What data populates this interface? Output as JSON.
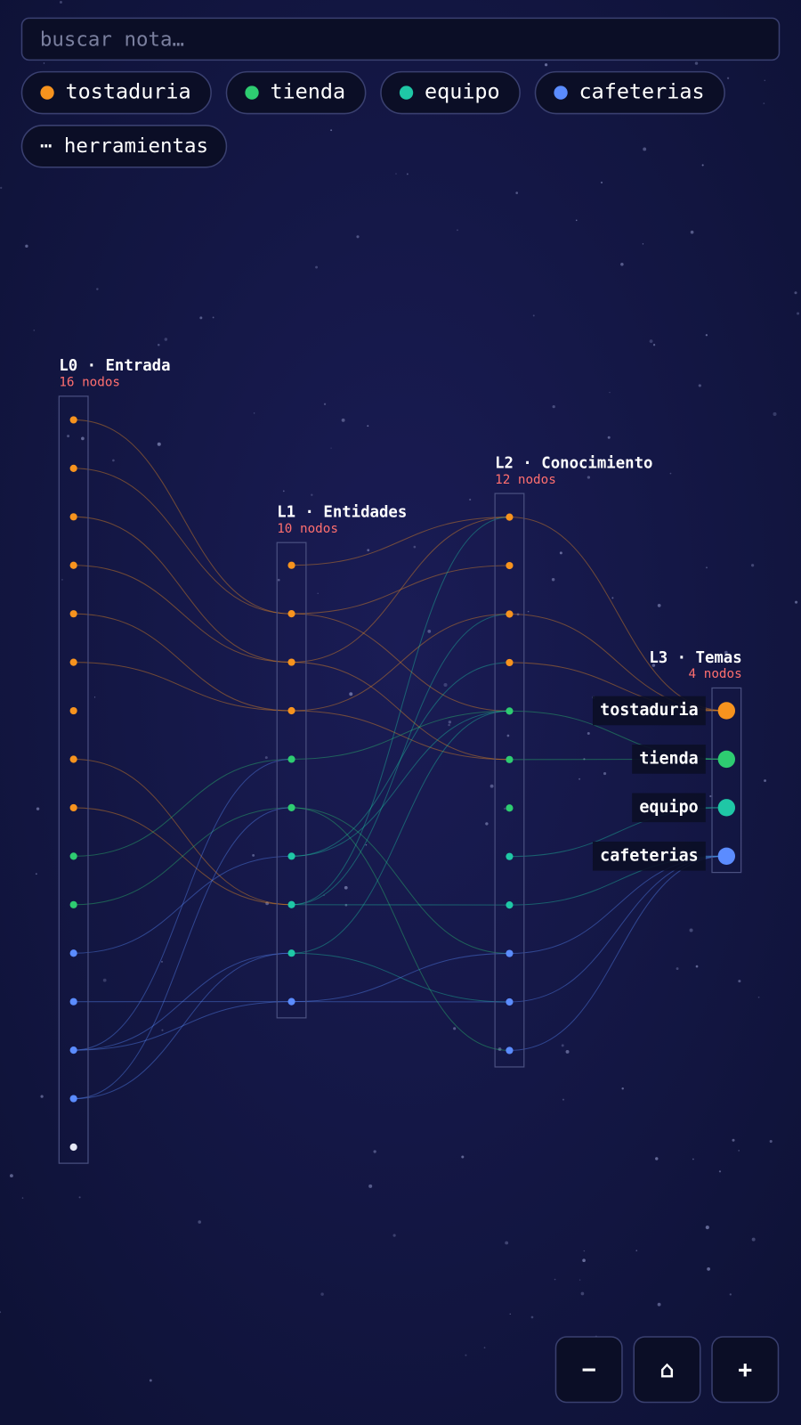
{
  "search": {
    "placeholder": "buscar nota…"
  },
  "filters": [
    "tostaduria",
    "tienda",
    "equipo",
    "cafeterias"
  ],
  "tools": "⋯ herramientas",
  "layers": [
    {
      "title": "L0 · Entrada",
      "count": "16 nodos"
    },
    {
      "title": "L1 · Entidades",
      "count": "10 nodos"
    },
    {
      "title": "L2 · Conocimiento",
      "count": "12 nodos"
    },
    {
      "title": "L3 · Temas",
      "count": "4 nodos"
    }
  ],
  "topics": [
    "tostaduria",
    "tienda",
    "equipo",
    "cafeterias"
  ],
  "controls": [
    "−",
    "⌂",
    "+"
  ]
}
